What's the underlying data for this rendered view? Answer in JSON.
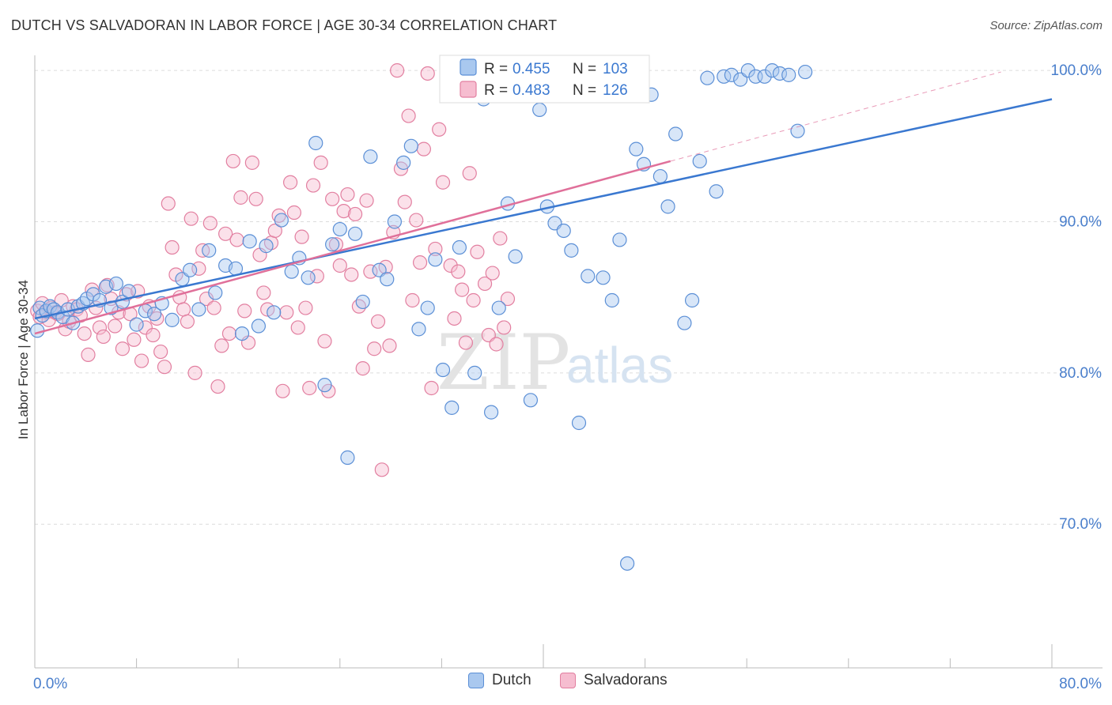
{
  "header": {
    "title": "DUTCH VS SALVADORAN IN LABOR FORCE | AGE 30-34 CORRELATION CHART",
    "source": "Source: ZipAtlas.com"
  },
  "watermark": {
    "zip": "ZIP",
    "atlas": "atlas"
  },
  "colors": {
    "dutch_fill": "#a9c8ef",
    "dutch_stroke": "#5b8fd6",
    "dutch_line": "#3a78d0",
    "salv_fill": "#f6bdd0",
    "salv_stroke": "#e27fa0",
    "salv_line": "#e0709a",
    "tick_label": "#4a7fcc",
    "grid": "#dcdcdc"
  },
  "legend": {
    "dutch": {
      "r_label": "R = ",
      "r_value": "0.455",
      "n_label": "N = ",
      "n_value": "103"
    },
    "salvadoran": {
      "r_label": "R = ",
      "r_value": "0.483",
      "n_label": "N = ",
      "n_value": "126"
    }
  },
  "legend_bottom": {
    "dutch": "Dutch",
    "salvadoran": "Salvadorans"
  },
  "chart_data": {
    "type": "scatter",
    "title": "DUTCH VS SALVADORAN IN LABOR FORCE | AGE 30-34 CORRELATION CHART",
    "xlabel": "",
    "ylabel": "In Labor Force | Age 30-34",
    "xlim": [
      0,
      80
    ],
    "ylim": [
      60.5,
      101
    ],
    "x_tick_labels": [
      "0.0%",
      "80.0%"
    ],
    "y_ticks": [
      70,
      80,
      90,
      100
    ],
    "y_tick_labels": [
      "70.0%",
      "80.0%",
      "90.0%",
      "100.0%"
    ],
    "grid": true,
    "series": [
      {
        "name": "Dutch",
        "r": 0.455,
        "n": 103,
        "trend": {
          "x0": 0,
          "y0": 83.6,
          "x1": 80,
          "y1": 98.1
        },
        "points": [
          [
            0.2,
            82.8
          ],
          [
            0.4,
            84.3
          ],
          [
            0.6,
            83.8
          ],
          [
            0.9,
            84.1
          ],
          [
            1.2,
            84.4
          ],
          [
            1.5,
            84.2
          ],
          [
            1.8,
            84.0
          ],
          [
            2.2,
            83.7
          ],
          [
            2.6,
            84.2
          ],
          [
            3.0,
            83.3
          ],
          [
            3.4,
            84.4
          ],
          [
            3.8,
            84.6
          ],
          [
            4.1,
            84.9
          ],
          [
            4.6,
            85.2
          ],
          [
            5.1,
            84.8
          ],
          [
            5.6,
            85.7
          ],
          [
            6.0,
            84.3
          ],
          [
            6.4,
            85.9
          ],
          [
            6.9,
            84.7
          ],
          [
            7.4,
            85.4
          ],
          [
            8.0,
            83.2
          ],
          [
            8.7,
            84.1
          ],
          [
            9.4,
            83.9
          ],
          [
            10.0,
            84.6
          ],
          [
            10.8,
            83.5
          ],
          [
            11.6,
            86.2
          ],
          [
            12.2,
            86.8
          ],
          [
            12.9,
            84.2
          ],
          [
            13.7,
            88.1
          ],
          [
            14.2,
            85.3
          ],
          [
            15.0,
            87.1
          ],
          [
            15.8,
            86.9
          ],
          [
            16.3,
            82.6
          ],
          [
            16.9,
            88.7
          ],
          [
            17.6,
            83.1
          ],
          [
            18.2,
            88.4
          ],
          [
            18.8,
            84.0
          ],
          [
            19.4,
            90.1
          ],
          [
            20.2,
            86.7
          ],
          [
            20.8,
            87.6
          ],
          [
            21.5,
            86.3
          ],
          [
            22.1,
            95.2
          ],
          [
            22.8,
            79.2
          ],
          [
            23.4,
            88.5
          ],
          [
            24.0,
            89.5
          ],
          [
            24.6,
            74.4
          ],
          [
            25.2,
            89.2
          ],
          [
            25.8,
            84.7
          ],
          [
            26.4,
            94.3
          ],
          [
            27.1,
            86.8
          ],
          [
            27.7,
            86.2
          ],
          [
            28.3,
            90.0
          ],
          [
            29.0,
            93.9
          ],
          [
            29.6,
            95.0
          ],
          [
            30.2,
            82.9
          ],
          [
            30.9,
            84.3
          ],
          [
            31.5,
            87.5
          ],
          [
            32.1,
            80.2
          ],
          [
            32.8,
            77.7
          ],
          [
            33.4,
            88.3
          ],
          [
            34.0,
            99.5
          ],
          [
            34.6,
            80.0
          ],
          [
            35.3,
            98.1
          ],
          [
            35.9,
            77.4
          ],
          [
            36.5,
            84.3
          ],
          [
            37.2,
            91.2
          ],
          [
            37.8,
            87.7
          ],
          [
            38.4,
            98.4
          ],
          [
            39.0,
            78.2
          ],
          [
            39.7,
            97.4
          ],
          [
            40.3,
            91.0
          ],
          [
            40.9,
            89.9
          ],
          [
            41.6,
            89.4
          ],
          [
            42.2,
            88.1
          ],
          [
            42.8,
            76.7
          ],
          [
            43.5,
            86.4
          ],
          [
            44.1,
            99.1
          ],
          [
            44.7,
            86.3
          ],
          [
            45.4,
            84.8
          ],
          [
            46.0,
            88.8
          ],
          [
            46.6,
            67.4
          ],
          [
            47.3,
            94.8
          ],
          [
            47.9,
            93.8
          ],
          [
            48.5,
            98.4
          ],
          [
            49.2,
            93.0
          ],
          [
            49.8,
            91.0
          ],
          [
            50.4,
            95.8
          ],
          [
            51.1,
            83.3
          ],
          [
            51.7,
            84.8
          ],
          [
            52.3,
            94.0
          ],
          [
            52.9,
            99.5
          ],
          [
            53.6,
            92.0
          ],
          [
            54.2,
            99.6
          ],
          [
            54.8,
            99.7
          ],
          [
            55.5,
            99.4
          ],
          [
            56.1,
            100.0
          ],
          [
            56.7,
            99.6
          ],
          [
            57.4,
            99.6
          ],
          [
            58.0,
            100.0
          ],
          [
            58.6,
            99.8
          ],
          [
            59.3,
            99.7
          ],
          [
            60.0,
            96.0
          ],
          [
            60.6,
            99.9
          ]
        ]
      },
      {
        "name": "Salvadorans",
        "r": 0.483,
        "n": 126,
        "trend": {
          "x0": 0,
          "y0": 82.6,
          "x1": 50,
          "y1": 94.0
        },
        "trend_extension": {
          "x0": 50,
          "y0": 94.0,
          "x1": 76,
          "y1": 99.9
        },
        "points": [
          [
            0.2,
            84.1
          ],
          [
            0.4,
            83.7
          ],
          [
            0.6,
            84.6
          ],
          [
            0.9,
            84.0
          ],
          [
            1.1,
            83.5
          ],
          [
            1.3,
            84.3
          ],
          [
            1.6,
            84.0
          ],
          [
            1.8,
            83.9
          ],
          [
            2.1,
            84.8
          ],
          [
            2.4,
            82.9
          ],
          [
            2.7,
            83.4
          ],
          [
            3.0,
            84.4
          ],
          [
            3.3,
            84.2
          ],
          [
            3.6,
            83.8
          ],
          [
            3.9,
            82.6
          ],
          [
            4.2,
            81.2
          ],
          [
            4.5,
            85.5
          ],
          [
            4.8,
            84.3
          ],
          [
            5.1,
            83.0
          ],
          [
            5.4,
            82.4
          ],
          [
            5.7,
            85.8
          ],
          [
            6.0,
            84.9
          ],
          [
            6.3,
            83.1
          ],
          [
            6.6,
            84.0
          ],
          [
            6.9,
            81.6
          ],
          [
            7.2,
            85.2
          ],
          [
            7.5,
            83.9
          ],
          [
            7.8,
            82.2
          ],
          [
            8.1,
            85.4
          ],
          [
            8.4,
            80.8
          ],
          [
            8.7,
            83.0
          ],
          [
            9.0,
            84.4
          ],
          [
            9.3,
            82.5
          ],
          [
            9.6,
            83.6
          ],
          [
            9.9,
            81.4
          ],
          [
            10.2,
            80.4
          ],
          [
            10.5,
            91.2
          ],
          [
            10.8,
            88.3
          ],
          [
            11.1,
            86.5
          ],
          [
            11.4,
            85.0
          ],
          [
            11.7,
            84.2
          ],
          [
            12.0,
            83.4
          ],
          [
            12.3,
            90.2
          ],
          [
            12.6,
            80.0
          ],
          [
            12.9,
            86.9
          ],
          [
            13.2,
            88.1
          ],
          [
            13.5,
            84.9
          ],
          [
            13.8,
            89.9
          ],
          [
            14.1,
            84.3
          ],
          [
            14.4,
            79.1
          ],
          [
            14.7,
            81.8
          ],
          [
            15.0,
            89.2
          ],
          [
            15.3,
            82.6
          ],
          [
            15.6,
            94.0
          ],
          [
            15.9,
            88.8
          ],
          [
            16.2,
            91.6
          ],
          [
            16.5,
            84.1
          ],
          [
            16.8,
            82.0
          ],
          [
            17.1,
            93.9
          ],
          [
            17.4,
            91.5
          ],
          [
            17.7,
            87.8
          ],
          [
            18.0,
            85.3
          ],
          [
            18.3,
            84.2
          ],
          [
            18.6,
            88.6
          ],
          [
            18.9,
            89.4
          ],
          [
            19.2,
            90.4
          ],
          [
            19.5,
            78.8
          ],
          [
            19.8,
            84.0
          ],
          [
            20.1,
            92.6
          ],
          [
            20.4,
            90.6
          ],
          [
            20.7,
            83.0
          ],
          [
            21.0,
            89.0
          ],
          [
            21.3,
            84.3
          ],
          [
            21.6,
            79.0
          ],
          [
            21.9,
            92.4
          ],
          [
            22.2,
            86.4
          ],
          [
            22.5,
            93.9
          ],
          [
            22.8,
            82.1
          ],
          [
            23.1,
            78.8
          ],
          [
            23.4,
            91.5
          ],
          [
            23.7,
            88.5
          ],
          [
            24.0,
            87.1
          ],
          [
            24.3,
            90.7
          ],
          [
            24.6,
            91.8
          ],
          [
            24.9,
            86.5
          ],
          [
            25.2,
            90.5
          ],
          [
            25.5,
            84.4
          ],
          [
            25.8,
            80.3
          ],
          [
            26.1,
            91.4
          ],
          [
            26.4,
            86.7
          ],
          [
            26.7,
            81.6
          ],
          [
            27.0,
            83.4
          ],
          [
            27.3,
            73.6
          ],
          [
            27.6,
            87.0
          ],
          [
            27.9,
            81.8
          ],
          [
            28.2,
            89.3
          ],
          [
            28.5,
            100.0
          ],
          [
            28.8,
            93.5
          ],
          [
            29.1,
            91.3
          ],
          [
            29.4,
            97.0
          ],
          [
            29.7,
            84.8
          ],
          [
            30.0,
            90.1
          ],
          [
            30.3,
            87.3
          ],
          [
            30.6,
            94.8
          ],
          [
            30.9,
            99.8
          ],
          [
            31.2,
            79.0
          ],
          [
            31.5,
            88.2
          ],
          [
            31.8,
            96.1
          ],
          [
            32.1,
            92.6
          ],
          [
            32.4,
            99.5
          ],
          [
            32.7,
            87.1
          ],
          [
            33.0,
            83.6
          ],
          [
            33.3,
            86.7
          ],
          [
            33.6,
            85.5
          ],
          [
            33.9,
            82.0
          ],
          [
            34.2,
            93.2
          ],
          [
            34.5,
            84.8
          ],
          [
            34.8,
            88.0
          ],
          [
            35.1,
            99.6
          ],
          [
            35.4,
            85.9
          ],
          [
            35.7,
            82.5
          ],
          [
            36.0,
            86.6
          ],
          [
            36.3,
            81.9
          ],
          [
            36.6,
            88.9
          ],
          [
            36.9,
            83.0
          ],
          [
            37.2,
            84.9
          ]
        ]
      }
    ]
  }
}
